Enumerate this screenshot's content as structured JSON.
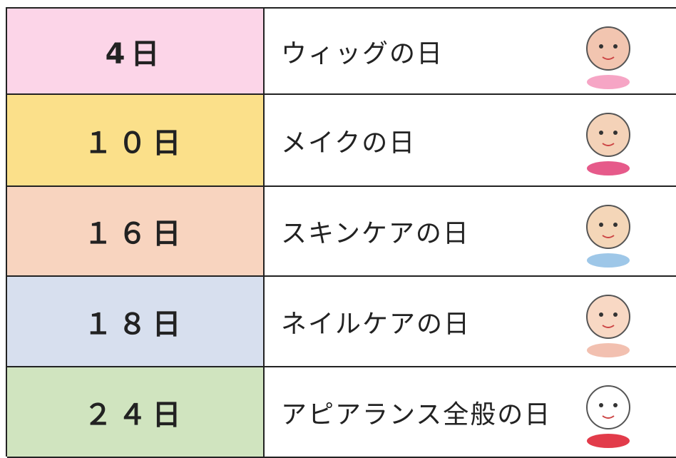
{
  "table": {
    "rows": [
      [
        "4日",
        "ウィッグの日"
      ],
      [
        "１０日",
        "メイクの日"
      ],
      [
        "１６日",
        "スキンケアの日"
      ],
      [
        "１８日",
        "ネイルケアの日"
      ],
      [
        "２４日",
        "アピアランス全般の日"
      ]
    ]
  }
}
